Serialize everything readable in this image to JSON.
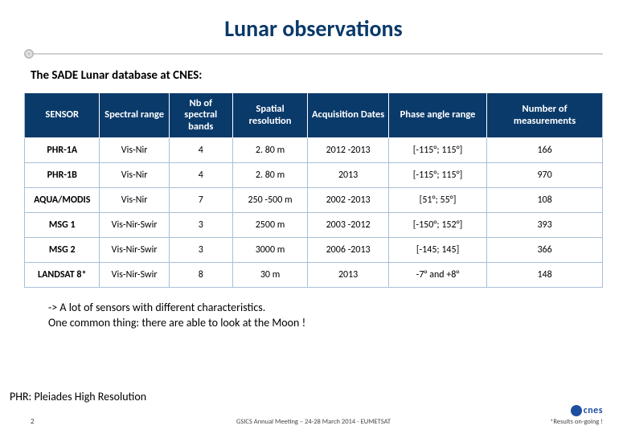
{
  "title": "Lunar observations",
  "subtitle": "The SADE Lunar database at CNES:",
  "table": {
    "columns": [
      "SENSOR",
      "Spectral range",
      "Nb of spectral bands",
      "Spatial resolution",
      "Acquisition Dates",
      "Phase angle range",
      "Number of measurements"
    ],
    "rows": [
      [
        "PHR-1A",
        "Vis-Nir",
        "4",
        "2. 80 m",
        "2012 -2013",
        "[-115°; 115°]",
        "166"
      ],
      [
        "PHR-1B",
        "Vis-Nir",
        "4",
        "2. 80 m",
        "2013",
        "[-115°; 115°]",
        "970"
      ],
      [
        "AQUA/MODIS",
        "Vis-Nir",
        "7",
        "250 -500 m",
        "2002 -2013",
        "[51°; 55°]",
        "108"
      ],
      [
        "MSG 1",
        "Vis-Nir-Swir",
        "3",
        "2500 m",
        "2003 -2012",
        "[-150°; 152°]",
        "393"
      ],
      [
        "MSG 2",
        "Vis-Nir-Swir",
        "3",
        "3000 m",
        "2006 -2013",
        "[-145; 145]",
        "366"
      ],
      [
        "LANDSAT 8*",
        "Vis-Nir-Swir",
        "8",
        "30 m",
        "2013",
        "-7° and +8°",
        "148"
      ]
    ]
  },
  "note_line1": "-> A lot of sensors with different characteristics.",
  "note_line2": "One common thing: there are able to look at the Moon !",
  "phr_note": "PHR: Pleiades High Resolution",
  "footer": {
    "page": "2",
    "center": "GSICS Annual Meeting – 24-28 March 2014 - EUMETSAT",
    "right": "*Results on-going !"
  },
  "logo_text": "cnes",
  "colors": {
    "title": "#0a3a6a",
    "header_bg": "#0a3a6a",
    "header_fg": "#ffffff",
    "border": "#a8c0d8",
    "rule": "#d0d0d0",
    "logo": "#1e4fa0"
  }
}
